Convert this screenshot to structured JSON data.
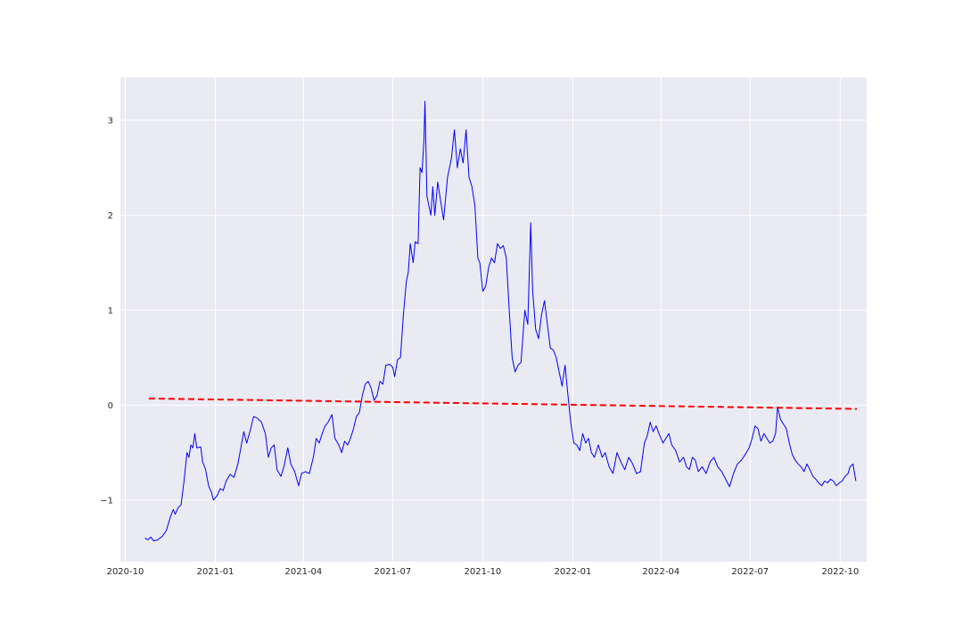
{
  "chart_data": {
    "type": "line",
    "title": "",
    "xlabel": "",
    "ylabel": "",
    "xlim": [
      "2020-09-26",
      "2022-10-28"
    ],
    "ylim": [
      -1.65,
      3.45
    ],
    "grid": true,
    "legend": "none",
    "x_ticks": [
      "2020-10",
      "2021-01",
      "2021-04",
      "2021-07",
      "2021-10",
      "2022-01",
      "2022-04",
      "2022-07",
      "2022-10"
    ],
    "y_ticks": [
      -1,
      0,
      1,
      2,
      3
    ],
    "y_tick_labels": [
      "−1",
      "0",
      "1",
      "2",
      "3"
    ],
    "series": [
      {
        "style": "solid",
        "color": "#0000ff",
        "points": [
          [
            "2020-10-21",
            -1.4
          ],
          [
            "2020-10-24",
            -1.42
          ],
          [
            "2020-10-27",
            -1.39
          ],
          [
            "2020-10-30",
            -1.43
          ],
          [
            "2020-11-03",
            -1.42
          ],
          [
            "2020-11-08",
            -1.38
          ],
          [
            "2020-11-12",
            -1.32
          ],
          [
            "2020-11-16",
            -1.18
          ],
          [
            "2020-11-19",
            -1.1
          ],
          [
            "2020-11-21",
            -1.15
          ],
          [
            "2020-11-24",
            -1.08
          ],
          [
            "2020-11-27",
            -1.05
          ],
          [
            "2020-11-30",
            -0.8
          ],
          [
            "2020-12-03",
            -0.5
          ],
          [
            "2020-12-05",
            -0.55
          ],
          [
            "2020-12-07",
            -0.42
          ],
          [
            "2020-12-09",
            -0.45
          ],
          [
            "2020-12-11",
            -0.3
          ],
          [
            "2020-12-13",
            -0.45
          ],
          [
            "2020-12-17",
            -0.44
          ],
          [
            "2020-12-19",
            -0.6
          ],
          [
            "2020-12-22",
            -0.68
          ],
          [
            "2020-12-25",
            -0.85
          ],
          [
            "2020-12-28",
            -0.92
          ],
          [
            "2020-12-30",
            -1.0
          ],
          [
            "2021-01-03",
            -0.95
          ],
          [
            "2021-01-06",
            -0.88
          ],
          [
            "2021-01-09",
            -0.9
          ],
          [
            "2021-01-12",
            -0.8
          ],
          [
            "2021-01-16",
            -0.73
          ],
          [
            "2021-01-20",
            -0.76
          ],
          [
            "2021-01-24",
            -0.62
          ],
          [
            "2021-01-27",
            -0.45
          ],
          [
            "2021-01-30",
            -0.28
          ],
          [
            "2021-02-02",
            -0.4
          ],
          [
            "2021-02-06",
            -0.25
          ],
          [
            "2021-02-09",
            -0.12
          ],
          [
            "2021-02-13",
            -0.14
          ],
          [
            "2021-02-17",
            -0.18
          ],
          [
            "2021-02-21",
            -0.3
          ],
          [
            "2021-02-24",
            -0.55
          ],
          [
            "2021-02-27",
            -0.45
          ],
          [
            "2021-03-02",
            -0.42
          ],
          [
            "2021-03-05",
            -0.68
          ],
          [
            "2021-03-09",
            -0.75
          ],
          [
            "2021-03-12",
            -0.65
          ],
          [
            "2021-03-16",
            -0.45
          ],
          [
            "2021-03-19",
            -0.62
          ],
          [
            "2021-03-23",
            -0.7
          ],
          [
            "2021-03-27",
            -0.85
          ],
          [
            "2021-03-30",
            -0.72
          ],
          [
            "2021-04-03",
            -0.7
          ],
          [
            "2021-04-07",
            -0.72
          ],
          [
            "2021-04-11",
            -0.55
          ],
          [
            "2021-04-14",
            -0.35
          ],
          [
            "2021-04-17",
            -0.4
          ],
          [
            "2021-04-20",
            -0.3
          ],
          [
            "2021-04-23",
            -0.22
          ],
          [
            "2021-04-26",
            -0.18
          ],
          [
            "2021-04-30",
            -0.1
          ],
          [
            "2021-05-03",
            -0.35
          ],
          [
            "2021-05-07",
            -0.42
          ],
          [
            "2021-05-10",
            -0.5
          ],
          [
            "2021-05-13",
            -0.38
          ],
          [
            "2021-05-16",
            -0.42
          ],
          [
            "2021-05-19",
            -0.35
          ],
          [
            "2021-05-22",
            -0.25
          ],
          [
            "2021-05-25",
            -0.12
          ],
          [
            "2021-05-28",
            -0.08
          ],
          [
            "2021-05-31",
            0.1
          ],
          [
            "2021-06-03",
            0.22
          ],
          [
            "2021-06-06",
            0.25
          ],
          [
            "2021-06-09",
            0.18
          ],
          [
            "2021-06-12",
            0.05
          ],
          [
            "2021-06-15",
            0.1
          ],
          [
            "2021-06-18",
            0.25
          ],
          [
            "2021-06-21",
            0.22
          ],
          [
            "2021-06-24",
            0.42
          ],
          [
            "2021-06-28",
            0.43
          ],
          [
            "2021-07-01",
            0.4
          ],
          [
            "2021-07-03",
            0.3
          ],
          [
            "2021-07-06",
            0.48
          ],
          [
            "2021-07-09",
            0.5
          ],
          [
            "2021-07-12",
            0.95
          ],
          [
            "2021-07-15",
            1.3
          ],
          [
            "2021-07-17",
            1.4
          ],
          [
            "2021-07-19",
            1.7
          ],
          [
            "2021-07-22",
            1.5
          ],
          [
            "2021-07-24",
            1.72
          ],
          [
            "2021-07-27",
            1.7
          ],
          [
            "2021-07-29",
            2.5
          ],
          [
            "2021-07-31",
            2.45
          ],
          [
            "2021-08-02",
            2.8
          ],
          [
            "2021-08-03",
            3.2
          ],
          [
            "2021-08-05",
            2.2
          ],
          [
            "2021-08-07",
            2.1
          ],
          [
            "2021-08-09",
            2.0
          ],
          [
            "2021-08-11",
            2.3
          ],
          [
            "2021-08-13",
            2.0
          ],
          [
            "2021-08-16",
            2.35
          ],
          [
            "2021-08-19",
            2.15
          ],
          [
            "2021-08-22",
            1.95
          ],
          [
            "2021-08-26",
            2.4
          ],
          [
            "2021-08-30",
            2.6
          ],
          [
            "2021-09-02",
            2.9
          ],
          [
            "2021-09-05",
            2.5
          ],
          [
            "2021-09-08",
            2.7
          ],
          [
            "2021-09-11",
            2.55
          ],
          [
            "2021-09-14",
            2.9
          ],
          [
            "2021-09-17",
            2.4
          ],
          [
            "2021-09-20",
            2.3
          ],
          [
            "2021-09-23",
            2.1
          ],
          [
            "2021-09-26",
            1.55
          ],
          [
            "2021-09-28",
            1.5
          ],
          [
            "2021-10-01",
            1.2
          ],
          [
            "2021-10-04",
            1.25
          ],
          [
            "2021-10-07",
            1.45
          ],
          [
            "2021-10-10",
            1.55
          ],
          [
            "2021-10-13",
            1.5
          ],
          [
            "2021-10-16",
            1.7
          ],
          [
            "2021-10-19",
            1.65
          ],
          [
            "2021-10-22",
            1.68
          ],
          [
            "2021-10-25",
            1.55
          ],
          [
            "2021-10-28",
            1.0
          ],
          [
            "2021-10-31",
            0.5
          ],
          [
            "2021-11-03",
            0.35
          ],
          [
            "2021-11-06",
            0.42
          ],
          [
            "2021-11-09",
            0.45
          ],
          [
            "2021-11-13",
            1.0
          ],
          [
            "2021-11-16",
            0.85
          ],
          [
            "2021-11-19",
            1.92
          ],
          [
            "2021-11-21",
            1.2
          ],
          [
            "2021-11-24",
            0.8
          ],
          [
            "2021-11-27",
            0.7
          ],
          [
            "2021-11-30",
            0.95
          ],
          [
            "2021-12-03",
            1.1
          ],
          [
            "2021-12-06",
            0.85
          ],
          [
            "2021-12-09",
            0.6
          ],
          [
            "2021-12-12",
            0.58
          ],
          [
            "2021-12-15",
            0.5
          ],
          [
            "2021-12-18",
            0.35
          ],
          [
            "2021-12-21",
            0.2
          ],
          [
            "2021-12-24",
            0.42
          ],
          [
            "2021-12-27",
            0.1
          ],
          [
            "2021-12-30",
            -0.2
          ],
          [
            "2022-01-02",
            -0.4
          ],
          [
            "2022-01-05",
            -0.42
          ],
          [
            "2022-01-08",
            -0.48
          ],
          [
            "2022-01-11",
            -0.3
          ],
          [
            "2022-01-14",
            -0.4
          ],
          [
            "2022-01-17",
            -0.35
          ],
          [
            "2022-01-20",
            -0.5
          ],
          [
            "2022-01-23",
            -0.55
          ],
          [
            "2022-01-27",
            -0.42
          ],
          [
            "2022-01-31",
            -0.55
          ],
          [
            "2022-02-03",
            -0.5
          ],
          [
            "2022-02-07",
            -0.65
          ],
          [
            "2022-02-11",
            -0.72
          ],
          [
            "2022-02-15",
            -0.5
          ],
          [
            "2022-02-19",
            -0.6
          ],
          [
            "2022-02-23",
            -0.68
          ],
          [
            "2022-02-27",
            -0.55
          ],
          [
            "2022-03-03",
            -0.62
          ],
          [
            "2022-03-07",
            -0.72
          ],
          [
            "2022-03-11",
            -0.7
          ],
          [
            "2022-03-15",
            -0.4
          ],
          [
            "2022-03-18",
            -0.32
          ],
          [
            "2022-03-21",
            -0.18
          ],
          [
            "2022-03-24",
            -0.28
          ],
          [
            "2022-03-27",
            -0.22
          ],
          [
            "2022-03-30",
            -0.3
          ],
          [
            "2022-04-03",
            -0.4
          ],
          [
            "2022-04-06",
            -0.35
          ],
          [
            "2022-04-09",
            -0.3
          ],
          [
            "2022-04-12",
            -0.42
          ],
          [
            "2022-04-16",
            -0.48
          ],
          [
            "2022-04-20",
            -0.6
          ],
          [
            "2022-04-24",
            -0.55
          ],
          [
            "2022-04-27",
            -0.65
          ],
          [
            "2022-04-30",
            -0.68
          ],
          [
            "2022-05-03",
            -0.55
          ],
          [
            "2022-05-06",
            -0.58
          ],
          [
            "2022-05-09",
            -0.7
          ],
          [
            "2022-05-13",
            -0.65
          ],
          [
            "2022-05-17",
            -0.72
          ],
          [
            "2022-05-21",
            -0.6
          ],
          [
            "2022-05-25",
            -0.55
          ],
          [
            "2022-05-29",
            -0.65
          ],
          [
            "2022-06-02",
            -0.7
          ],
          [
            "2022-06-06",
            -0.78
          ],
          [
            "2022-06-10",
            -0.86
          ],
          [
            "2022-06-14",
            -0.72
          ],
          [
            "2022-06-18",
            -0.62
          ],
          [
            "2022-06-22",
            -0.58
          ],
          [
            "2022-06-26",
            -0.52
          ],
          [
            "2022-06-30",
            -0.45
          ],
          [
            "2022-07-03",
            -0.35
          ],
          [
            "2022-07-06",
            -0.22
          ],
          [
            "2022-07-09",
            -0.25
          ],
          [
            "2022-07-12",
            -0.38
          ],
          [
            "2022-07-15",
            -0.3
          ],
          [
            "2022-07-18",
            -0.35
          ],
          [
            "2022-07-21",
            -0.4
          ],
          [
            "2022-07-24",
            -0.38
          ],
          [
            "2022-07-27",
            -0.3
          ],
          [
            "2022-07-29",
            -0.02
          ],
          [
            "2022-08-01",
            -0.15
          ],
          [
            "2022-08-04",
            -0.2
          ],
          [
            "2022-08-07",
            -0.25
          ],
          [
            "2022-08-10",
            -0.4
          ],
          [
            "2022-08-13",
            -0.52
          ],
          [
            "2022-08-16",
            -0.58
          ],
          [
            "2022-08-19",
            -0.62
          ],
          [
            "2022-08-22",
            -0.65
          ],
          [
            "2022-08-25",
            -0.7
          ],
          [
            "2022-08-28",
            -0.62
          ],
          [
            "2022-08-31",
            -0.68
          ],
          [
            "2022-09-03",
            -0.75
          ],
          [
            "2022-09-06",
            -0.78
          ],
          [
            "2022-09-09",
            -0.82
          ],
          [
            "2022-09-12",
            -0.85
          ],
          [
            "2022-09-15",
            -0.8
          ],
          [
            "2022-09-18",
            -0.82
          ],
          [
            "2022-09-21",
            -0.78
          ],
          [
            "2022-09-24",
            -0.8
          ],
          [
            "2022-09-27",
            -0.85
          ],
          [
            "2022-09-30",
            -0.82
          ],
          [
            "2022-10-03",
            -0.8
          ],
          [
            "2022-10-06",
            -0.75
          ],
          [
            "2022-10-09",
            -0.72
          ],
          [
            "2022-10-11",
            -0.65
          ],
          [
            "2022-10-14",
            -0.62
          ],
          [
            "2022-10-17",
            -0.8
          ]
        ]
      },
      {
        "style": "dashed",
        "color": "#ff0000",
        "points": [
          [
            "2020-10-25",
            0.07
          ],
          [
            "2022-10-18",
            -0.04
          ]
        ]
      }
    ]
  }
}
